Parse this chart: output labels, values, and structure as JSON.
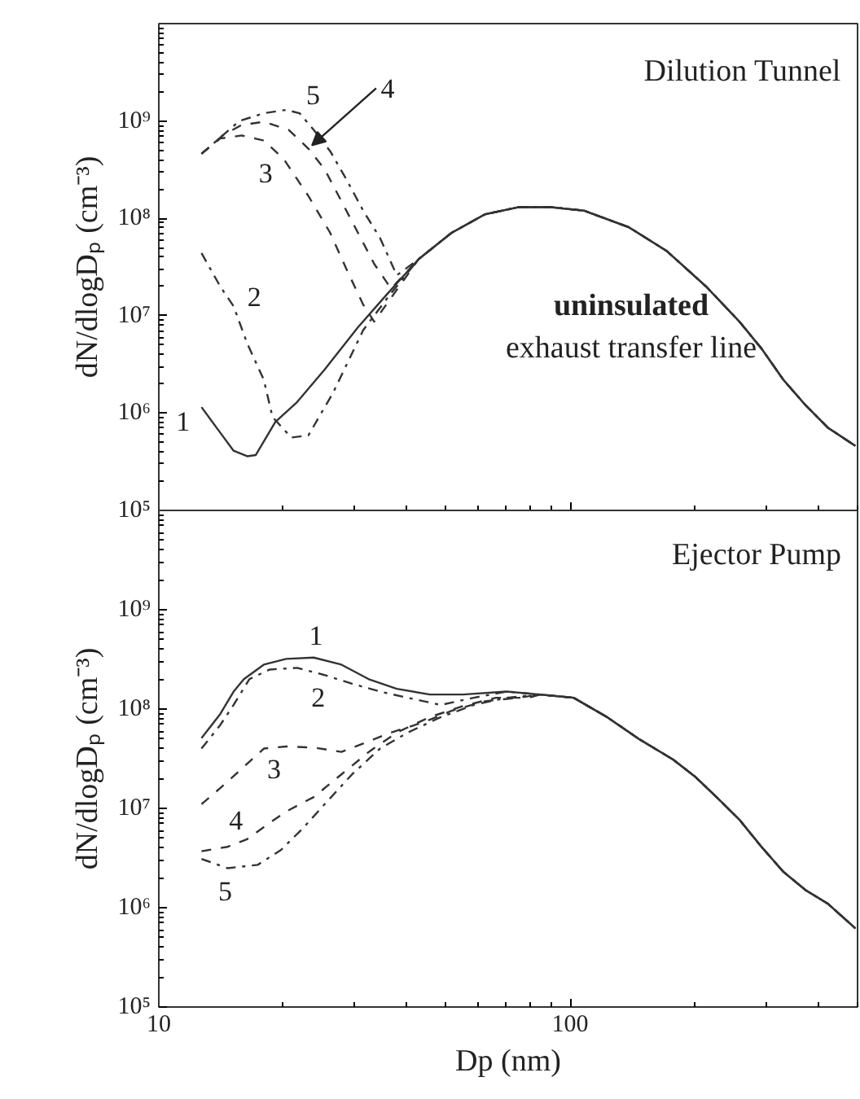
{
  "chart_data": [
    {
      "type": "line",
      "title": "Dilution Tunnel",
      "ylabel": "dN/dlogDₚ (cm⁻³)",
      "log": "xy",
      "xlim": [
        10,
        500
      ],
      "ylim": [
        100000,
        10000000000
      ],
      "xticks": [
        10,
        100
      ],
      "yticks": [
        {
          "value": 100000,
          "label": "10⁵"
        },
        {
          "value": 1000000,
          "label": "10⁶"
        },
        {
          "value": 10000000,
          "label": "10⁷"
        },
        {
          "value": 100000000,
          "label": "10⁸"
        },
        {
          "value": 1000000000,
          "label": "10⁹"
        }
      ],
      "tick_labels": "y",
      "annotations": [
        "uninsulated",
        "exhaust transfer line",
        {
          "text": "1",
          "x": 12.7,
          "y": 1150000
        },
        {
          "text": "2",
          "x": 15.2,
          "y": 12500000
        },
        {
          "text": "3",
          "x": 20.1,
          "y": 410000000
        },
        {
          "text": "4",
          "x": 23.1,
          "y": 520000000
        },
        {
          "text": "5",
          "x": 22.0,
          "y": 1200000000
        }
      ],
      "series": [
        {
          "color": "#333333",
          "line_style": "solid",
          "x": [
            12.7,
            14.1,
            15.2,
            16.4,
            17.2,
            19.2,
            21.7,
            25.3,
            30.5,
            35.6,
            42.8,
            51.5,
            62.1,
            74.8,
            90,
            108,
            139,
            172,
            214,
            258,
            292,
            330,
            374,
            423,
            494
          ],
          "values": [
            1150000,
            630000,
            410000,
            360000,
            370000,
            810000,
            1300000,
            2800000,
            7600000,
            16000000,
            38000000,
            71000000,
            110000000,
            130000000,
            130000000,
            120000000,
            81000000,
            46000000,
            20000000,
            8700000,
            4600000,
            2200000,
            1200000,
            710000,
            460000
          ]
        },
        {
          "color": "#333333",
          "line_style": "dashdot",
          "x": [
            12.7,
            14.1,
            15.2,
            16.4,
            18.0,
            18.9,
            21.0,
            23.1,
            26.5,
            31.4,
            36.7,
            42.8,
            51.5,
            62.1,
            74.8,
            90,
            108,
            139,
            172,
            214,
            258,
            292,
            330,
            374,
            423,
            494
          ],
          "values": [
            44000000,
            20000000,
            12500000,
            5200000,
            2200000,
            910000,
            560000,
            590000,
            1600000,
            7100000,
            17000000,
            38000000,
            71000000,
            110000000,
            130000000,
            130000000,
            120000000,
            81000000,
            46000000,
            20000000,
            8700000,
            4600000,
            2200000,
            1200000,
            710000,
            460000
          ]
        },
        {
          "color": "#333333",
          "line_style": "dashed",
          "x": [
            12.7,
            14.1,
            15.9,
            18.0,
            20.1,
            23.1,
            26.1,
            28.6,
            31.4,
            33.4,
            42.8,
            51.5,
            62.1,
            74.8,
            90,
            108,
            139,
            172,
            214,
            258,
            292,
            330,
            374,
            423,
            494
          ],
          "values": [
            460000000,
            660000000,
            710000000,
            630000000,
            410000000,
            170000000,
            71000000,
            30000000,
            13000000,
            8700000,
            38000000,
            71000000,
            110000000,
            130000000,
            130000000,
            120000000,
            81000000,
            46000000,
            20000000,
            8700000,
            4600000,
            2200000,
            1200000,
            710000,
            460000
          ]
        },
        {
          "color": "#333333",
          "line_style": "dashed",
          "x": [
            12.7,
            14.3,
            15.9,
            18.0,
            20.7,
            23.1,
            25.3,
            27.8,
            30.5,
            33.4,
            36.7,
            42.8,
            51.5,
            62.1,
            74.8,
            90,
            108,
            139,
            172,
            214,
            258,
            292,
            330,
            374,
            423,
            494
          ],
          "values": [
            460000000,
            710000000,
            910000000,
            980000000,
            810000000,
            520000000,
            320000000,
            150000000,
            71000000,
            34000000,
            19000000,
            38000000,
            71000000,
            110000000,
            130000000,
            130000000,
            120000000,
            81000000,
            46000000,
            20000000,
            8700000,
            4600000,
            2200000,
            1200000,
            710000,
            460000
          ]
        },
        {
          "color": "#333333",
          "line_style": "dashdot",
          "x": [
            12.7,
            14.3,
            15.7,
            18.0,
            20.4,
            22.0,
            23.8,
            26.1,
            28.6,
            31.4,
            34.5,
            37.9,
            42.8,
            51.5,
            62.1,
            74.8,
            90,
            108,
            139,
            172,
            214,
            258,
            292,
            330,
            374,
            423,
            494
          ],
          "values": [
            460000000,
            710000000,
            1000000000,
            1200000000,
            1300000000,
            1200000000,
            810000000,
            490000000,
            250000000,
            120000000,
            63000000,
            26000000,
            38000000,
            71000000,
            110000000,
            130000000,
            130000000,
            120000000,
            81000000,
            46000000,
            20000000,
            8700000,
            4600000,
            2200000,
            1200000,
            710000,
            460000
          ]
        }
      ]
    },
    {
      "type": "line",
      "title": "Ejector Pump",
      "xlabel": "Dp (nm)",
      "ylabel": "dN/dlogDₚ (cm⁻³)",
      "log": "xy",
      "xlim": [
        10,
        500
      ],
      "ylim": [
        100000,
        10000000000
      ],
      "xticks": [
        10,
        100
      ],
      "yticks": [
        {
          "value": 100000,
          "label": "10⁵"
        },
        {
          "value": 1000000,
          "label": "10⁶"
        },
        {
          "value": 10000000,
          "label": "10⁷"
        },
        {
          "value": 100000000,
          "label": "10⁸"
        },
        {
          "value": 1000000000,
          "label": "10⁹"
        }
      ],
      "annotations": [
        {
          "text": "1",
          "x": 23.8,
          "y": 330000000
        },
        {
          "text": "2",
          "x": 25.3,
          "y": 220000000
        },
        {
          "text": "3",
          "x": 18.0,
          "y": 40000000
        },
        {
          "text": "4",
          "x": 16.4,
          "y": 4900000
        },
        {
          "text": "5",
          "x": 14.7,
          "y": 2500000
        }
      ],
      "series": [
        {
          "color": "#333333",
          "line_style": "solid",
          "x": [
            12.7,
            14.1,
            15.2,
            16.1,
            18.0,
            20.4,
            23.8,
            27.8,
            32.4,
            37.9,
            45.6,
            54.9,
            70.1,
            84.4,
            102,
            123,
            147,
            178,
            201,
            227,
            258,
            292,
            330,
            374,
            423,
            494
          ],
          "values": [
            51000000,
            89000000,
            150000000,
            200000000,
            280000000,
            320000000,
            330000000,
            280000000,
            200000000,
            160000000,
            140000000,
            140000000,
            150000000,
            140000000,
            130000000,
            83000000,
            50000000,
            31000000,
            21000000,
            13000000,
            7700000,
            4100000,
            2300000,
            1500000,
            1100000,
            620000
          ]
        },
        {
          "color": "#333333",
          "line_style": "dashdot",
          "x": [
            12.7,
            14.1,
            15.2,
            16.6,
            18.6,
            21.7,
            25.3,
            29.5,
            34.5,
            40.3,
            48.5,
            58.3,
            70.1,
            84.4,
            102,
            123,
            147,
            178,
            201,
            227,
            258,
            292,
            330,
            374,
            423,
            494
          ],
          "values": [
            40000000,
            69000000,
            110000000,
            200000000,
            250000000,
            260000000,
            220000000,
            180000000,
            150000000,
            130000000,
            110000000,
            130000000,
            150000000,
            140000000,
            130000000,
            83000000,
            50000000,
            31000000,
            21000000,
            13000000,
            7700000,
            4100000,
            2300000,
            1500000,
            1100000,
            620000
          ]
        },
        {
          "color": "#333333",
          "line_style": "dashed",
          "x": [
            12.7,
            14.1,
            15.9,
            18.0,
            20.4,
            23.8,
            27.8,
            31.4,
            36.7,
            44.2,
            51.5,
            62.1,
            74.8,
            84.4,
            102,
            123,
            147,
            178,
            201,
            227,
            258,
            292,
            330,
            374,
            423,
            494
          ],
          "values": [
            11000000,
            16000000,
            25000000,
            40000000,
            42000000,
            41000000,
            37000000,
            45000000,
            58000000,
            74000000,
            96000000,
            120000000,
            130000000,
            140000000,
            130000000,
            83000000,
            50000000,
            31000000,
            21000000,
            13000000,
            7700000,
            4100000,
            2300000,
            1500000,
            1100000,
            620000
          ]
        },
        {
          "color": "#333333",
          "line_style": "dashed",
          "x": [
            12.7,
            14.7,
            16.4,
            18.3,
            20.4,
            23.8,
            27.8,
            32.4,
            37.9,
            45.6,
            54.9,
            66.0,
            79.4,
            84.4,
            102,
            123,
            147,
            178,
            201,
            227,
            258,
            292,
            330,
            374,
            423,
            494
          ],
          "values": [
            3700000,
            4100000,
            4900000,
            6800000,
            9300000,
            13000000,
            22000000,
            37000000,
            58000000,
            83000000,
            107000000,
            130000000,
            130000000,
            140000000,
            130000000,
            83000000,
            50000000,
            31000000,
            21000000,
            13000000,
            7700000,
            4100000,
            2300000,
            1500000,
            1100000,
            620000
          ]
        },
        {
          "color": "#333333",
          "line_style": "dashdot",
          "x": [
            12.7,
            14.7,
            17.4,
            19.8,
            22.4,
            25.3,
            29.5,
            34.5,
            40.3,
            48.5,
            58.3,
            70.1,
            84.4,
            102,
            123,
            147,
            178,
            201,
            227,
            258,
            292,
            330,
            374,
            423,
            494
          ],
          "values": [
            3100000,
            2500000,
            2700000,
            3800000,
            6300000,
            11000000,
            22000000,
            40000000,
            58000000,
            83000000,
            110000000,
            130000000,
            140000000,
            130000000,
            83000000,
            50000000,
            31000000,
            21000000,
            13000000,
            7700000,
            4100000,
            2300000,
            1500000,
            1100000,
            620000
          ]
        }
      ]
    }
  ]
}
